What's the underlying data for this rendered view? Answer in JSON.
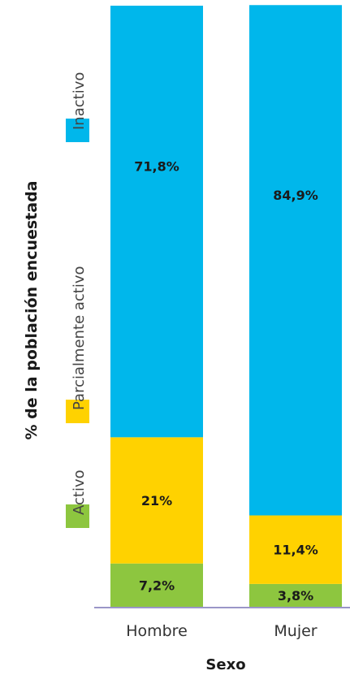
{
  "chart_data": {
    "type": "bar",
    "stacked": true,
    "orientation": "vertical",
    "categories": [
      "Hombre",
      "Mujer"
    ],
    "series": [
      {
        "name": "Activo",
        "color": "#8DC63F",
        "values": [
          7.2,
          3.8
        ],
        "labels": [
          "7,2%",
          "3,8%"
        ]
      },
      {
        "name": "Parcialmente activo",
        "color": "#FFD200",
        "values": [
          21,
          11.4
        ],
        "labels": [
          "21%",
          "11,4%"
        ]
      },
      {
        "name": "Inactivo",
        "color": "#00B7EB",
        "values": [
          71.8,
          84.9
        ],
        "labels": [
          "71,8%",
          "84,9%"
        ]
      }
    ],
    "xlabel": "Sexo",
    "ylabel": "% de la población encuestada",
    "ylim": [
      0,
      100
    ],
    "legend_position": "left-vertical",
    "grid": false,
    "axis_color": "#9A96C8"
  }
}
